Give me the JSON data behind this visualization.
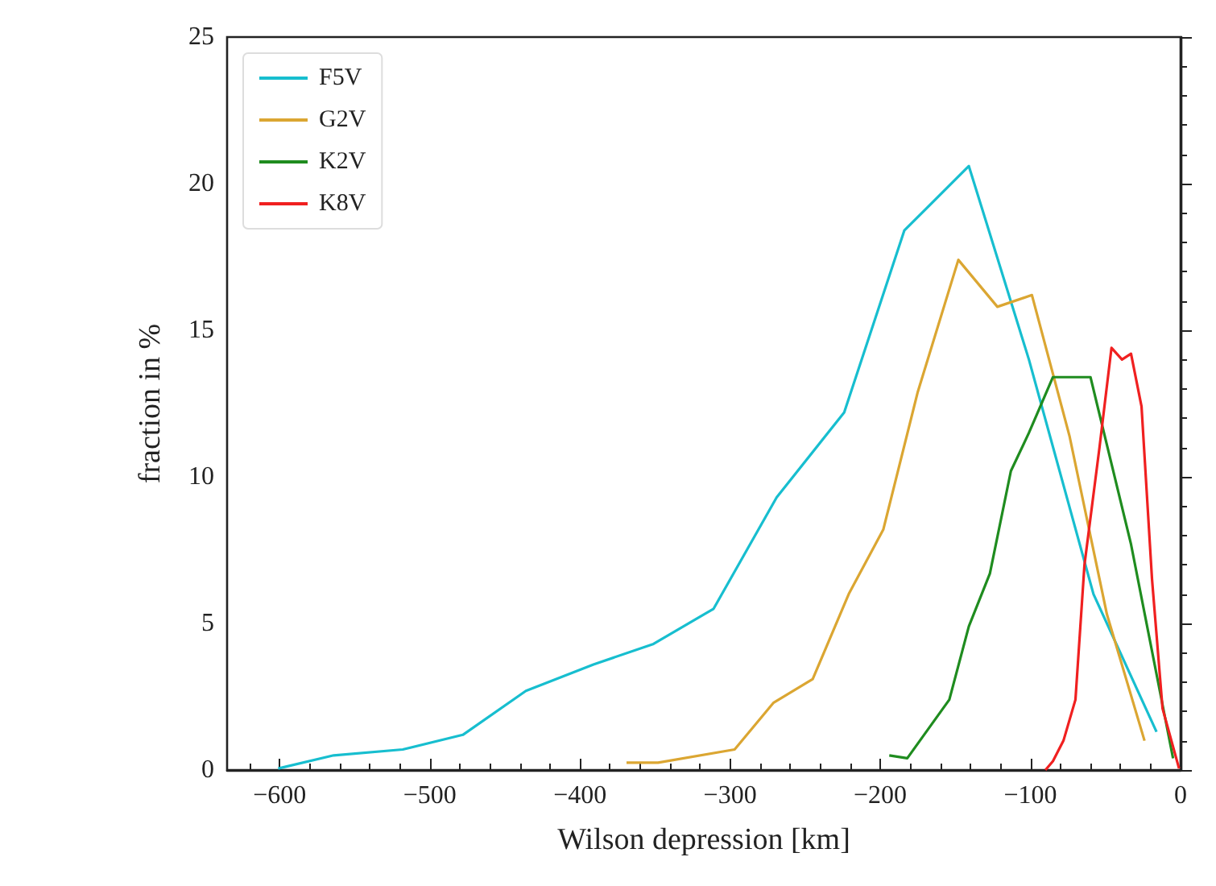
{
  "chart_data": {
    "type": "line",
    "xlabel": "Wilson depression [km]",
    "ylabel": "fraction in %",
    "xlim": [
      -635,
      0
    ],
    "xticks": [
      -600,
      -500,
      -400,
      -300,
      -200,
      -100,
      0
    ],
    "ylim": [
      0,
      25
    ],
    "yticks": [
      0,
      5,
      10,
      15,
      20,
      25
    ],
    "grid": false,
    "legend": "top left",
    "marker": "none",
    "line_style": "solid",
    "series": [
      {
        "name": "F5V",
        "color": "#17becf",
        "x": [
          -601,
          -564,
          -518,
          -478,
          -436,
          -391,
          -351,
          -311,
          -269,
          -224,
          -184,
          -141,
          -101,
          -58,
          -16
        ],
        "values": [
          0.05,
          0.5,
          0.7,
          1.2,
          2.7,
          3.6,
          4.3,
          5.5,
          9.3,
          12.2,
          18.4,
          20.6,
          14,
          6,
          1.3
        ]
      },
      {
        "name": "G2V",
        "color": "#dba632",
        "x": [
          -369,
          -348,
          -297,
          -271,
          -245,
          -221,
          -198,
          -175,
          -148,
          -122,
          -99,
          -74,
          -49,
          -24
        ],
        "values": [
          0.25,
          0.25,
          0.7,
          2.3,
          3.1,
          6,
          8.2,
          12.9,
          17.4,
          15.8,
          16.2,
          11.4,
          5.3,
          1
        ]
      },
      {
        "name": "K2V",
        "color": "#1f8c1f",
        "x": [
          -194,
          -182,
          -154,
          -141,
          -127,
          -113,
          -101,
          -85,
          -60,
          -33,
          -5
        ],
        "values": [
          0.5,
          0.4,
          2.4,
          4.9,
          6.7,
          10.2,
          11.5,
          13.4,
          13.4,
          7.7,
          0.4
        ]
      },
      {
        "name": "K8V",
        "color": "#f02020",
        "x": [
          -90,
          -85,
          -78,
          -70,
          -64,
          -54,
          -46,
          -39,
          -33,
          -26,
          -19,
          -12,
          -1
        ],
        "values": [
          0,
          0.3,
          1,
          2.4,
          7,
          11,
          14.4,
          14,
          14.2,
          12.4,
          6.5,
          2.1,
          0.05
        ]
      }
    ]
  }
}
